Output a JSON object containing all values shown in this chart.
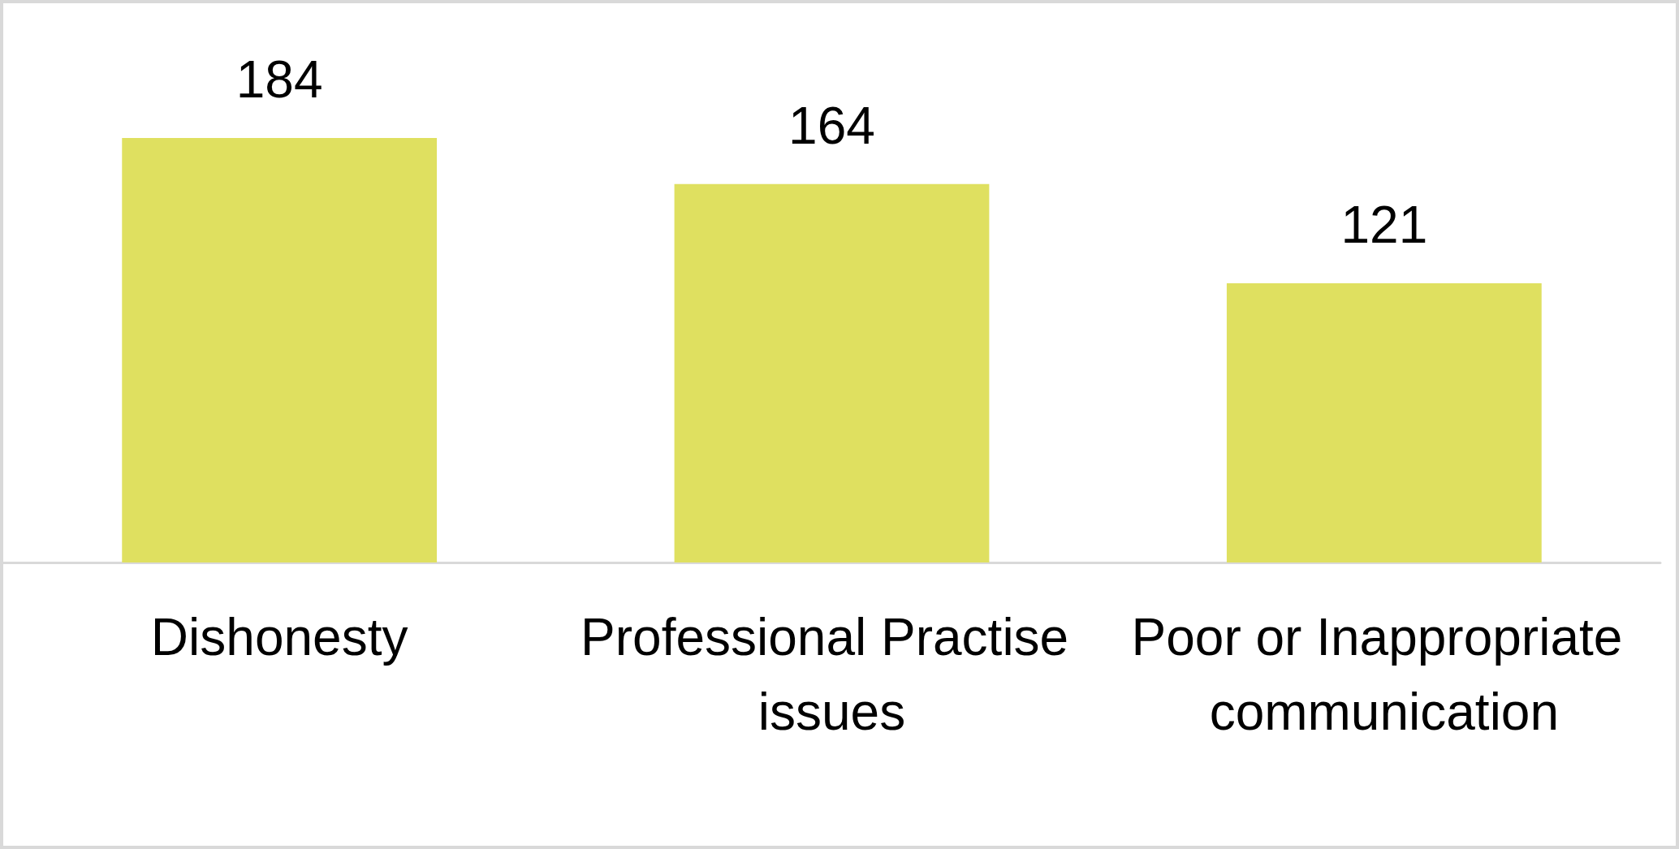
{
  "chart_data": {
    "type": "bar",
    "categories": [
      "Dishonesty",
      "Professional Practise issues",
      "Poor or Inappropriate communication"
    ],
    "values": [
      184,
      164,
      121
    ],
    "color": "#dfe060",
    "data_labels": true
  }
}
